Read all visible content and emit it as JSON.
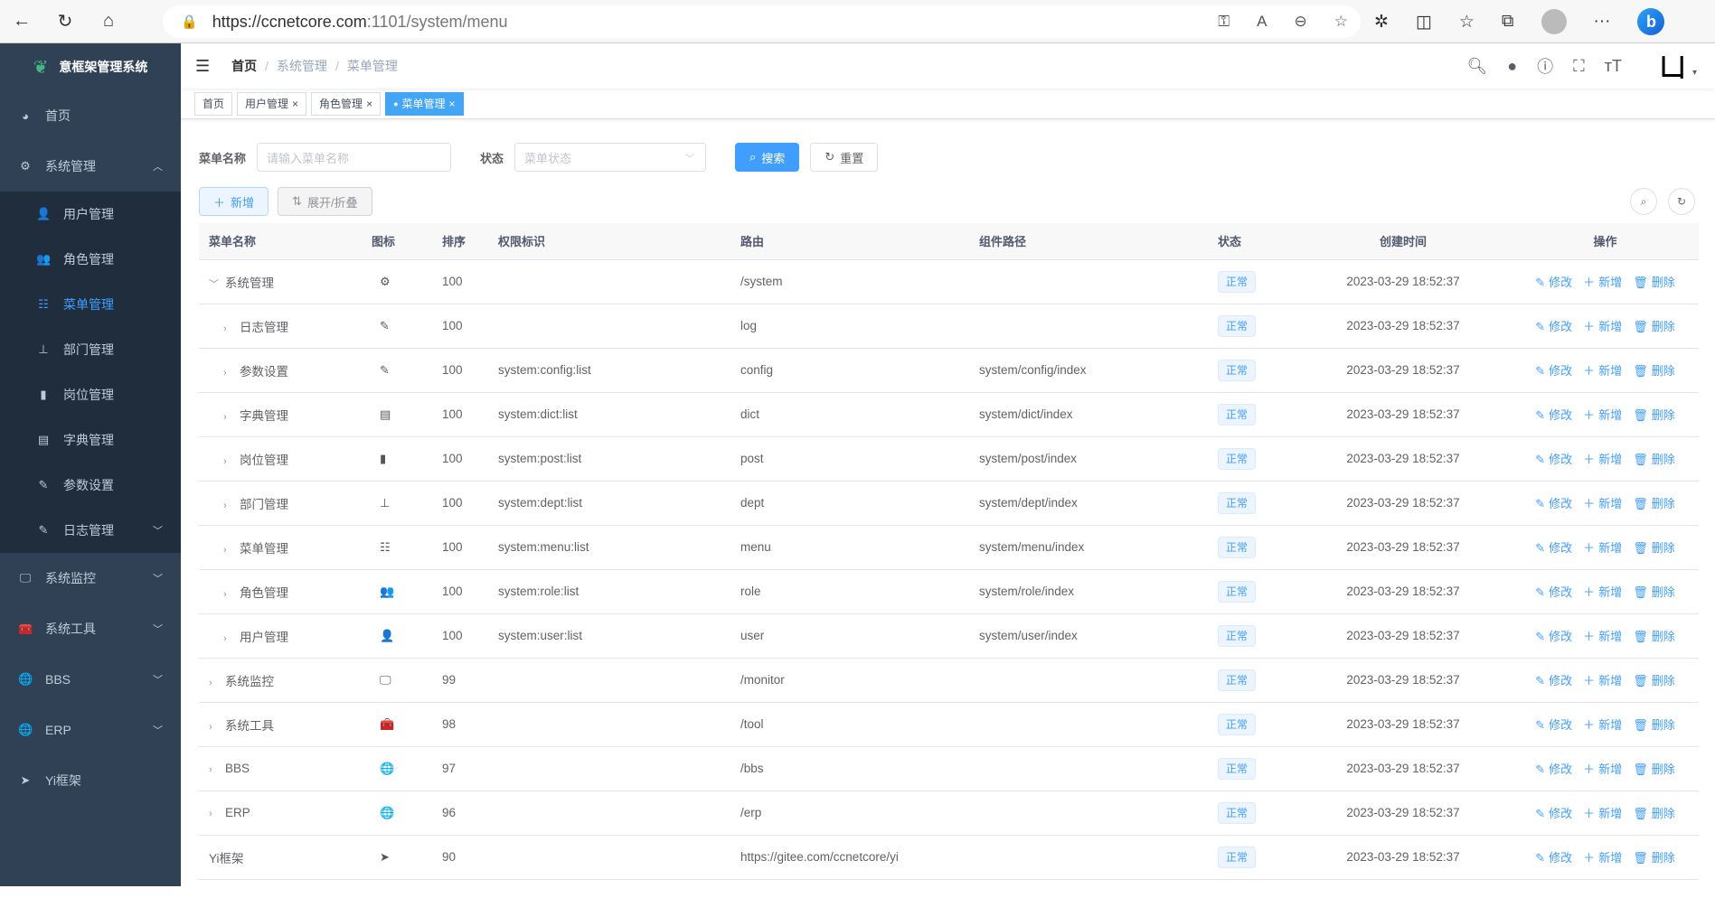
{
  "browser": {
    "url_host": "https://ccnetcore.com",
    "url_rest": ":1101/system/menu"
  },
  "sidebar": {
    "title": "意框架管理系统",
    "items": [
      {
        "label": "首页",
        "icon": "dashboard-icon"
      },
      {
        "label": "系统管理",
        "icon": "gear-icon",
        "expanded": true,
        "children": [
          {
            "label": "用户管理",
            "icon": "user-icon"
          },
          {
            "label": "角色管理",
            "icon": "peoples-icon"
          },
          {
            "label": "菜单管理",
            "icon": "tree-table-icon",
            "active": true
          },
          {
            "label": "部门管理",
            "icon": "tree-icon"
          },
          {
            "label": "岗位管理",
            "icon": "post-icon"
          },
          {
            "label": "字典管理",
            "icon": "dict-icon"
          },
          {
            "label": "参数设置",
            "icon": "edit-icon"
          },
          {
            "label": "日志管理",
            "icon": "log-icon",
            "has_children": true
          }
        ]
      },
      {
        "label": "系统监控",
        "icon": "monitor-icon"
      },
      {
        "label": "系统工具",
        "icon": "tool-icon"
      },
      {
        "label": "BBS",
        "icon": "globe-icon"
      },
      {
        "label": "ERP",
        "icon": "globe-icon"
      },
      {
        "label": "Yi框架",
        "icon": "send-icon"
      }
    ]
  },
  "breadcrumb": [
    "首页",
    "系统管理",
    "菜单管理"
  ],
  "tags": [
    {
      "label": "首页"
    },
    {
      "label": "用户管理",
      "closable": true
    },
    {
      "label": "角色管理",
      "closable": true
    },
    {
      "label": "菜单管理",
      "closable": true,
      "active": true
    }
  ],
  "search": {
    "name_label": "菜单名称",
    "name_placeholder": "请输入菜单名称",
    "status_label": "状态",
    "status_placeholder": "菜单状态",
    "search_btn": "搜索",
    "reset_btn": "重置"
  },
  "toolbar": {
    "add_btn": "新增",
    "toggle_btn": "展开/折叠"
  },
  "table": {
    "columns": [
      "菜单名称",
      "图标",
      "排序",
      "权限标识",
      "路由",
      "组件路径",
      "状态",
      "创建时间",
      "操作"
    ],
    "actions": [
      "修改",
      "新增",
      "删除"
    ],
    "rows": [
      {
        "name": "系统管理",
        "level": 0,
        "expand": "open",
        "icon": "⚙",
        "sort": "100",
        "perms": "",
        "route": "/system",
        "component": "",
        "status": "正常",
        "time": "2023-03-29 18:52:37"
      },
      {
        "name": "日志管理",
        "level": 1,
        "expand": "closed",
        "icon": "✎",
        "sort": "100",
        "perms": "",
        "route": "log",
        "component": "",
        "status": "正常",
        "time": "2023-03-29 18:52:37"
      },
      {
        "name": "参数设置",
        "level": 1,
        "expand": "closed",
        "icon": "✎",
        "sort": "100",
        "perms": "system:config:list",
        "route": "config",
        "component": "system/config/index",
        "status": "正常",
        "time": "2023-03-29 18:52:37"
      },
      {
        "name": "字典管理",
        "level": 1,
        "expand": "closed",
        "icon": "▤",
        "sort": "100",
        "perms": "system:dict:list",
        "route": "dict",
        "component": "system/dict/index",
        "status": "正常",
        "time": "2023-03-29 18:52:37"
      },
      {
        "name": "岗位管理",
        "level": 1,
        "expand": "closed",
        "icon": "▮",
        "sort": "100",
        "perms": "system:post:list",
        "route": "post",
        "component": "system/post/index",
        "status": "正常",
        "time": "2023-03-29 18:52:37"
      },
      {
        "name": "部门管理",
        "level": 1,
        "expand": "closed",
        "icon": "⊥",
        "sort": "100",
        "perms": "system:dept:list",
        "route": "dept",
        "component": "system/dept/index",
        "status": "正常",
        "time": "2023-03-29 18:52:37"
      },
      {
        "name": "菜单管理",
        "level": 1,
        "expand": "closed",
        "icon": "☷",
        "sort": "100",
        "perms": "system:menu:list",
        "route": "menu",
        "component": "system/menu/index",
        "status": "正常",
        "time": "2023-03-29 18:52:37"
      },
      {
        "name": "角色管理",
        "level": 1,
        "expand": "closed",
        "icon": "👥",
        "sort": "100",
        "perms": "system:role:list",
        "route": "role",
        "component": "system/role/index",
        "status": "正常",
        "time": "2023-03-29 18:52:37"
      },
      {
        "name": "用户管理",
        "level": 1,
        "expand": "closed",
        "icon": "👤",
        "sort": "100",
        "perms": "system:user:list",
        "route": "user",
        "component": "system/user/index",
        "status": "正常",
        "time": "2023-03-29 18:52:37"
      },
      {
        "name": "系统监控",
        "level": 0,
        "expand": "closed",
        "icon": "🖵",
        "sort": "99",
        "perms": "",
        "route": "/monitor",
        "component": "",
        "status": "正常",
        "time": "2023-03-29 18:52:37"
      },
      {
        "name": "系统工具",
        "level": 0,
        "expand": "closed",
        "icon": "🧰",
        "sort": "98",
        "perms": "",
        "route": "/tool",
        "component": "",
        "status": "正常",
        "time": "2023-03-29 18:52:37"
      },
      {
        "name": "BBS",
        "level": 0,
        "expand": "closed",
        "icon": "🌐",
        "sort": "97",
        "perms": "",
        "route": "/bbs",
        "component": "",
        "status": "正常",
        "time": "2023-03-29 18:52:37"
      },
      {
        "name": "ERP",
        "level": 0,
        "expand": "closed",
        "icon": "🌐",
        "sort": "96",
        "perms": "",
        "route": "/erp",
        "component": "",
        "status": "正常",
        "time": "2023-03-29 18:52:37"
      },
      {
        "name": "Yi框架",
        "level": 0,
        "expand": "none",
        "icon": "➤",
        "sort": "90",
        "perms": "",
        "route": "https://gitee.com/ccnetcore/yi",
        "component": "",
        "status": "正常",
        "time": "2023-03-29 18:52:37"
      }
    ]
  },
  "colors": {
    "primary": "#409eff",
    "sidebar": "#304156",
    "submenu": "#1f2d3d"
  }
}
